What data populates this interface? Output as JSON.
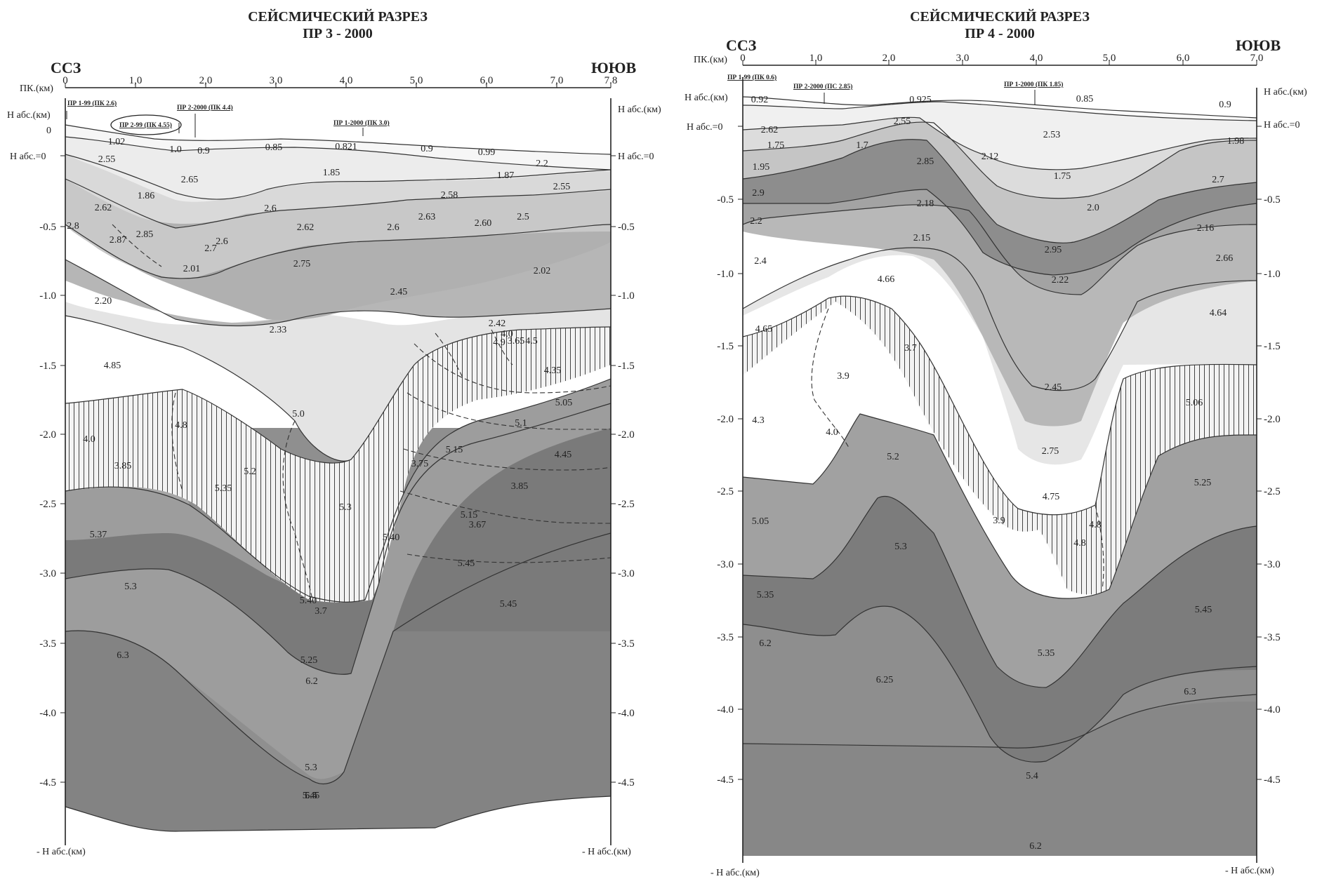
{
  "left_section": {
    "title_line1": "СЕЙСМИЧЕСКИЙ РАЗРЕЗ",
    "title_line2": "ПР 3 - 2000",
    "dir_left": "ССЗ",
    "dir_right": "ЮЮВ",
    "pk_label": "ПК.(км)",
    "pk_ticks": [
      "0",
      "1,0",
      "2,0",
      "3,0",
      "4,0",
      "5,0",
      "6,0",
      "7,0",
      "7.8"
    ],
    "h_abs_km": "Н абс.(км)",
    "zero": "0",
    "h_abs_zero": "Н абс.=0",
    "depth_ticks": [
      "-0.5",
      "-1.0",
      "-1.5",
      "-2.0",
      "-2.5",
      "-3.0",
      "-3.5",
      "-4.0",
      "-4.5"
    ],
    "bottom_label": "- Н абс.(км)",
    "profile_markers": [
      "ПР 1-99 (ПК 2.6)",
      "ПР 2-99 (ПК 4.55)",
      "ПР 2-2000 (ПК 4.4)",
      "ПР 1-2000 (ПК 3.0)"
    ],
    "velocities": [
      "1.02",
      "1.0",
      "0.9",
      "0.85",
      "0.821",
      "0.9",
      "0.99",
      "2.2",
      "2.55",
      "2.65",
      "1.85",
      "1.87",
      "2.55",
      "1.86",
      "2.58",
      "2.62",
      "2.6",
      "2.62",
      "2.63",
      "2.8",
      "2.87",
      "2.85",
      "2.7",
      "2.6",
      "2.6",
      "2.5",
      "2.60",
      "2.01",
      "2.75",
      "2.02",
      "2.20",
      "2.45",
      "2.33",
      "2.42",
      "4.85",
      "4.9",
      "3.65",
      "4.0",
      "4.5",
      "4.35",
      "5.0",
      "5.05",
      "4.8",
      "5.1",
      "4.0",
      "5.15",
      "4.45",
      "5.2",
      "5.35",
      "3.75",
      "3.85",
      "3.85",
      "5.3",
      "5.37",
      "5.15",
      "5.40",
      "3.67",
      "5.40",
      "5.3",
      "5.45",
      "3.7",
      "5.45",
      "6.3",
      "5.25",
      "6.2",
      "5.3",
      "5.45",
      "5.5",
      "6.4"
    ],
    "mini_markers": [
      "ПР 1-99 (ПК 2.6)",
      "ПР 2-2000 (ПК 4.4)",
      "ПР 2-99 (ПК 4.55)",
      "ПР 1-2000 (ПК 3.0)"
    ]
  },
  "right_section": {
    "title_line1": "СЕЙСМИЧЕСКИЙ РАЗРЕЗ",
    "title_line2": "ПР 4 - 2000",
    "dir_left": "ССЗ",
    "dir_right": "ЮЮВ",
    "pk_label": "ПК.(км)",
    "pk_ticks": [
      "0",
      "1.0",
      "2.0",
      "3.0",
      "4.0",
      "5.0",
      "6.0",
      "7.0"
    ],
    "h_abs_km": "Н абс.(км)",
    "h_abs_zero": "Н абс.=0",
    "depth_ticks": [
      "-0.5",
      "-1.0",
      "-1.5",
      "-2.0",
      "-2.5",
      "-3.0",
      "-3.5",
      "-4.0",
      "-4.5"
    ],
    "bottom_label": "- Н абс.(км)",
    "profile_markers": [
      "ПР 1-99 (ПК 0.6)",
      "ПР 2-2000 (ПС 2.85)",
      "ПР 1-2000 (ПК 1.85)"
    ],
    "velocities": [
      "0.92",
      "0.925",
      "0.85",
      "0.9",
      "2.62",
      "2.55",
      "2.53",
      "1.75",
      "1.7",
      "2.12",
      "1.98",
      "1.95",
      "2.85",
      "1.75",
      "2.9",
      "2.18",
      "2.0",
      "2.7",
      "2.2",
      "2.15",
      "2.95",
      "2.16",
      "2.4",
      "2.22",
      "2.66",
      "4.66",
      "4.65",
      "4.64",
      "3.7",
      "3.9",
      "2.45",
      "4.3",
      "4.0",
      "5.06",
      "5.2",
      "2.75",
      "5.25",
      "4.75",
      "3.9",
      "4.8",
      "4.8",
      "5.05",
      "5.3",
      "5.35",
      "5.45",
      "6.2",
      "5.35",
      "6.25",
      "6.3",
      "5.4",
      "6.2"
    ],
    "mini_markers": [
      "ПР 1-99 (ПК 0.6)",
      "ПР 2-2000 (ПС 2.85)",
      "ПР 1-2000 (ПК 1.85)"
    ]
  }
}
